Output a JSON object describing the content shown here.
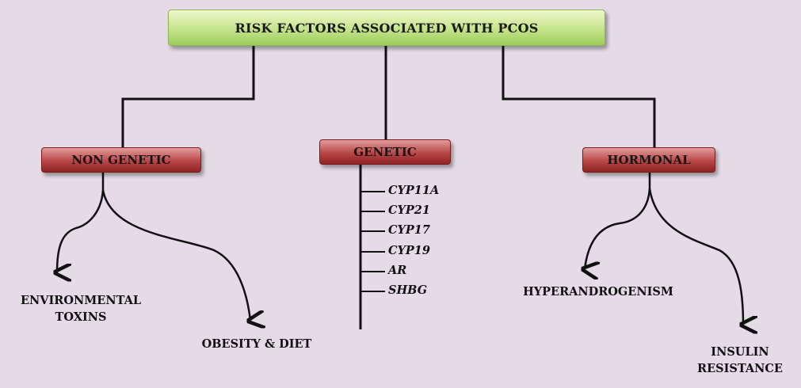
{
  "title": "RISK FACTORS ASSOCIATED WITH PCOS",
  "categories": {
    "non_genetic": {
      "label": "NON GENETIC",
      "items": [
        "ENVIRONMENTAL TOXINS",
        "OBESITY & DIET"
      ]
    },
    "genetic": {
      "label": "GENETIC",
      "genes": [
        "CYP11A",
        "CYP21",
        "CYP17",
        "CYP19",
        "AR",
        "SHBG"
      ]
    },
    "hormonal": {
      "label": "HORMONAL",
      "items": [
        "HYPERANDROGENISM",
        "INSULIN RESISTANCE"
      ]
    }
  },
  "colors": {
    "background": "#e4dbe6",
    "root_box": "#c4e48a",
    "category_box": "#b84646",
    "lines": "#111111"
  }
}
